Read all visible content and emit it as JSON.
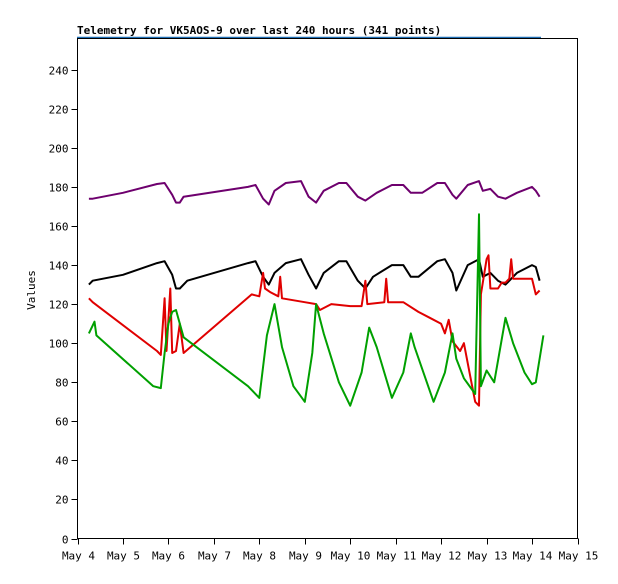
{
  "chart_data": {
    "type": "line",
    "title": "Telemetry for VK5AOS-9 over last 240 hours (341 points)",
    "ylabel": "Values",
    "xlabel": "",
    "ylim": [
      0,
      256
    ],
    "xlim": [
      "May 4",
      "May 15"
    ],
    "yticks": [
      "0",
      "20",
      "40",
      "60",
      "80",
      "100",
      "120",
      "140",
      "160",
      "180",
      "200",
      "220",
      "240"
    ],
    "xticks": [
      "May 4",
      "May 5",
      "May 6",
      "May 7",
      "May 8",
      "May 9",
      "May 10",
      "May 11",
      "May 12",
      "May 13",
      "May 14",
      "May 15"
    ],
    "grid": false,
    "legend": "none",
    "series": [
      {
        "color": "#6e006e",
        "points": [
          [
            "May 4 06:00",
            174
          ],
          [
            "May 4 08:00",
            174
          ],
          [
            "May 5 00:00",
            177
          ],
          [
            "May 5 18:00",
            181.5
          ],
          [
            "May 5 22:00",
            182
          ],
          [
            "May 6 02:00",
            176
          ],
          [
            "May 6 04:00",
            172
          ],
          [
            "May 6 06:00",
            172
          ],
          [
            "May 6 08:00",
            175
          ],
          [
            "May 7 18:00",
            180
          ],
          [
            "May 7 22:00",
            181
          ],
          [
            "May 8 02:00",
            174
          ],
          [
            "May 8 05:00",
            171
          ],
          [
            "May 8 08:00",
            178
          ],
          [
            "May 8 14:00",
            182
          ],
          [
            "May 8 22:00",
            183
          ],
          [
            "May 9 02:00",
            175
          ],
          [
            "May 9 06:00",
            172
          ],
          [
            "May 9 10:00",
            178
          ],
          [
            "May 9 18:00",
            182
          ],
          [
            "May 9 22:00",
            182
          ],
          [
            "May 10 04:00",
            175
          ],
          [
            "May 10 08:00",
            173
          ],
          [
            "May 10 14:00",
            177
          ],
          [
            "May 10 22:00",
            181
          ],
          [
            "May 11 04:00",
            181
          ],
          [
            "May 11 08:00",
            177
          ],
          [
            "May 11 14:00",
            177
          ],
          [
            "May 11 22:00",
            182
          ],
          [
            "May 12 02:00",
            182
          ],
          [
            "May 12 06:00",
            176
          ],
          [
            "May 12 08:00",
            174
          ],
          [
            "May 12 14:00",
            181
          ],
          [
            "May 12 20:00",
            183
          ],
          [
            "May 12 22:00",
            178
          ],
          [
            "May 13 02:00",
            179
          ],
          [
            "May 13 06:00",
            175
          ],
          [
            "May 13 10:00",
            174
          ],
          [
            "May 13 16:00",
            177
          ],
          [
            "May 14 00:00",
            180
          ],
          [
            "May 14 02:00",
            178
          ],
          [
            "May 14 04:00",
            175
          ]
        ]
      },
      {
        "color": "#000000",
        "points": [
          [
            "May 4 06:00",
            130
          ],
          [
            "May 4 08:00",
            132
          ],
          [
            "May 5 00:00",
            135
          ],
          [
            "May 5 18:00",
            141
          ],
          [
            "May 5 22:00",
            142
          ],
          [
            "May 6 02:00",
            135
          ],
          [
            "May 6 04:00",
            128
          ],
          [
            "May 6 06:00",
            128
          ],
          [
            "May 6 10:00",
            132
          ],
          [
            "May 7 18:00",
            141
          ],
          [
            "May 7 22:00",
            142
          ],
          [
            "May 8 02:00",
            134
          ],
          [
            "May 8 05:00",
            130
          ],
          [
            "May 8 08:00",
            136
          ],
          [
            "May 8 14:00",
            141
          ],
          [
            "May 8 22:00",
            143
          ],
          [
            "May 9 02:00",
            135
          ],
          [
            "May 9 06:00",
            128
          ],
          [
            "May 9 10:00",
            136
          ],
          [
            "May 9 18:00",
            142
          ],
          [
            "May 9 22:00",
            142
          ],
          [
            "May 10 04:00",
            132
          ],
          [
            "May 10 08:00",
            128
          ],
          [
            "May 10 12:00",
            134
          ],
          [
            "May 10 22:00",
            140
          ],
          [
            "May 11 04:00",
            140
          ],
          [
            "May 11 08:00",
            134
          ],
          [
            "May 11 12:00",
            134
          ],
          [
            "May 11 22:00",
            142
          ],
          [
            "May 12 02:00",
            143
          ],
          [
            "May 12 06:00",
            136
          ],
          [
            "May 12 08:00",
            127
          ],
          [
            "May 12 14:00",
            140
          ],
          [
            "May 12 20:00",
            143
          ],
          [
            "May 12 22:00",
            134
          ],
          [
            "May 13 02:00",
            136
          ],
          [
            "May 13 06:00",
            132
          ],
          [
            "May 13 10:00",
            130
          ],
          [
            "May 13 16:00",
            136
          ],
          [
            "May 14 00:00",
            140
          ],
          [
            "May 14 02:00",
            139
          ],
          [
            "May 14 04:00",
            132
          ]
        ]
      },
      {
        "color": "#e00000",
        "points": [
          [
            "May 4 06:00",
            123
          ],
          [
            "May 4 08:00",
            121
          ],
          [
            "May 5 18:00",
            96
          ],
          [
            "May 5 20:00",
            94
          ],
          [
            "May 5 22:00",
            123
          ],
          [
            "May 5 23:00",
            96
          ],
          [
            "May 6 01:00",
            128
          ],
          [
            "May 6 02:00",
            95
          ],
          [
            "May 6 04:00",
            96
          ],
          [
            "May 6 06:00",
            110
          ],
          [
            "May 6 08:00",
            95
          ],
          [
            "May 7 20:00",
            125
          ],
          [
            "May 8 00:00",
            124
          ],
          [
            "May 8 02:00",
            136
          ],
          [
            "May 8 03:00",
            128
          ],
          [
            "May 8 06:00",
            126
          ],
          [
            "May 8 10:00",
            124
          ],
          [
            "May 8 11:00",
            134
          ],
          [
            "May 8 12:00",
            123
          ],
          [
            "May 9 00:00",
            121
          ],
          [
            "May 9 06:00",
            120
          ],
          [
            "May 9 08:00",
            117
          ],
          [
            "May 9 14:00",
            120
          ],
          [
            "May 10 00:00",
            119
          ],
          [
            "May 10 06:00",
            119
          ],
          [
            "May 10 08:00",
            132
          ],
          [
            "May 10 09:00",
            120
          ],
          [
            "May 10 18:00",
            121
          ],
          [
            "May 10 19:00",
            133
          ],
          [
            "May 10 20:00",
            121
          ],
          [
            "May 11 04:00",
            121
          ],
          [
            "May 11 12:00",
            116
          ],
          [
            "May 11 18:00",
            113
          ],
          [
            "May 12 00:00",
            110
          ],
          [
            "May 12 02:00",
            105
          ],
          [
            "May 12 04:00",
            112
          ],
          [
            "May 12 06:00",
            101
          ],
          [
            "May 12 10:00",
            96
          ],
          [
            "May 12 12:00",
            100
          ],
          [
            "May 12 16:00",
            80
          ],
          [
            "May 12 18:00",
            70
          ],
          [
            "May 12 20:00",
            68
          ],
          [
            "May 12 21:00",
            125
          ],
          [
            "May 13 00:00",
            143
          ],
          [
            "May 13 01:00",
            145
          ],
          [
            "May 13 02:00",
            128
          ],
          [
            "May 13 06:00",
            128
          ],
          [
            "May 13 08:00",
            131
          ],
          [
            "May 13 10:00",
            131
          ],
          [
            "May 13 12:00",
            133
          ],
          [
            "May 13 13:00",
            143
          ],
          [
            "May 13 14:00",
            133
          ],
          [
            "May 13 20:00",
            133
          ],
          [
            "May 14 00:00",
            133
          ],
          [
            "May 14 02:00",
            125
          ],
          [
            "May 14 04:00",
            127
          ]
        ]
      },
      {
        "color": "#00a000",
        "points": [
          [
            "May 4 06:00",
            105
          ],
          [
            "May 4 09:00",
            111
          ],
          [
            "May 4 10:00",
            104
          ],
          [
            "May 5 16:00",
            78
          ],
          [
            "May 5 20:00",
            77
          ],
          [
            "May 5 22:00",
            95
          ],
          [
            "May 6 00:00",
            110
          ],
          [
            "May 6 02:00",
            116
          ],
          [
            "May 6 04:00",
            117
          ],
          [
            "May 6 08:00",
            103
          ],
          [
            "May 7 18:00",
            78
          ],
          [
            "May 8 00:00",
            72
          ],
          [
            "May 8 04:00",
            104
          ],
          [
            "May 8 08:00",
            120
          ],
          [
            "May 8 12:00",
            98
          ],
          [
            "May 8 18:00",
            78
          ],
          [
            "May 9 00:00",
            70
          ],
          [
            "May 9 04:00",
            95
          ],
          [
            "May 9 06:00",
            120
          ],
          [
            "May 9 10:00",
            105
          ],
          [
            "May 9 18:00",
            80
          ],
          [
            "May 10 00:00",
            68
          ],
          [
            "May 10 06:00",
            85
          ],
          [
            "May 10 10:00",
            108
          ],
          [
            "May 10 14:00",
            98
          ],
          [
            "May 10 22:00",
            72
          ],
          [
            "May 11 04:00",
            85
          ],
          [
            "May 11 08:00",
            105
          ],
          [
            "May 11 10:00",
            98
          ],
          [
            "May 11 20:00",
            70
          ],
          [
            "May 12 02:00",
            85
          ],
          [
            "May 12 06:00",
            105
          ],
          [
            "May 12 08:00",
            92
          ],
          [
            "May 12 12:00",
            82
          ],
          [
            "May 12 18:00",
            74
          ],
          [
            "May 12 20:00",
            166
          ],
          [
            "May 12 21:00",
            78
          ],
          [
            "May 13 00:00",
            86
          ],
          [
            "May 13 04:00",
            80
          ],
          [
            "May 13 10:00",
            113
          ],
          [
            "May 13 14:00",
            100
          ],
          [
            "May 13 20:00",
            85
          ],
          [
            "May 14 00:00",
            79
          ],
          [
            "May 14 02:00",
            80
          ],
          [
            "May 14 06:00",
            104
          ]
        ]
      }
    ]
  }
}
